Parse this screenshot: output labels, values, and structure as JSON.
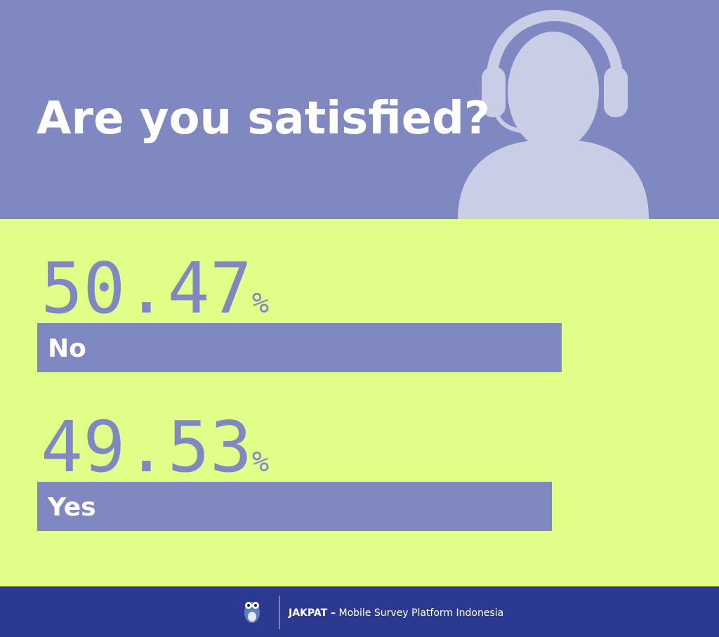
{
  "chart_data": {
    "type": "bar",
    "orientation": "horizontal",
    "title": "Are you satisfied?",
    "categories": [
      "No",
      "Yes"
    ],
    "values": [
      50.47,
      49.53
    ],
    "unit": "%",
    "color": "#7f88c1"
  },
  "footer": {
    "brand": "JAKPAT –",
    "tagline": "Mobile Survey Platform Indonesia"
  }
}
